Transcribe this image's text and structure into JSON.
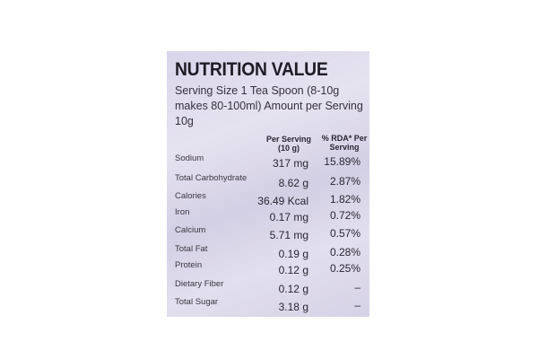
{
  "title": "NUTRITION VALUE",
  "serving_text": "Serving Size 1 Tea Spoon (8-10g makes 80-100ml) Amount per Serving 10g",
  "columns": {
    "per_serving": "Per Serving (10 g)",
    "rda": "% RDA* Per Serving"
  },
  "rows": [
    {
      "name": "Sodium",
      "value": "317 mg",
      "rda": "15.89%"
    },
    {
      "name": "Total Carbohydrate",
      "value": "8.62 g",
      "rda": "2.87%"
    },
    {
      "name": "Calories",
      "value": "36.49 Kcal",
      "rda": "1.82%"
    },
    {
      "name": "Iron",
      "value": "0.17 mg",
      "rda": "0.72%"
    },
    {
      "name": "Calcium",
      "value": "5.71 mg",
      "rda": "0.57%"
    },
    {
      "name": "Total Fat",
      "value": "0.19 g",
      "rda": "0.28%"
    },
    {
      "name": "Protein",
      "value": "0.12 g",
      "rda": "0.25%"
    },
    {
      "name": "Dietary Fiber",
      "value": "0.12 g",
      "rda": "–"
    },
    {
      "name": "Total Sugar",
      "value": "3.18 g",
      "rda": "–"
    }
  ]
}
